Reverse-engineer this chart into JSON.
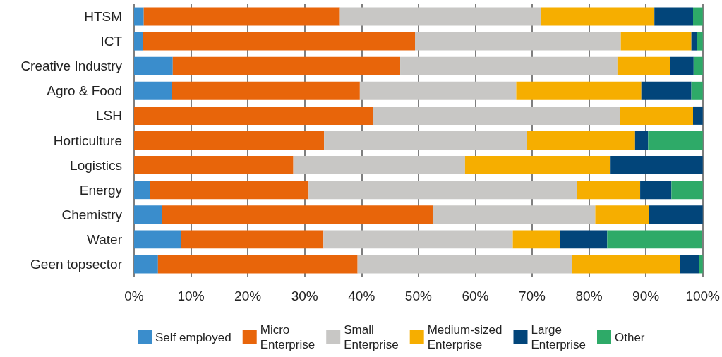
{
  "chart_data": {
    "type": "bar",
    "orientation": "horizontal",
    "stacked": true,
    "categories": [
      "HTSM",
      "ICT",
      "Creative Industry",
      "Agro & Food",
      "LSH",
      "Horticulture",
      "Logistics",
      "Energy",
      "Chemistry",
      "Water",
      "Geen topsector"
    ],
    "series": [
      {
        "name": "Self employed",
        "color": "#3a8dcc",
        "values": [
          1.7,
          1.6,
          6.8,
          6.7,
          0,
          0,
          0,
          2.8,
          4.9,
          8.3,
          4.2
        ]
      },
      {
        "name": "Micro Enterprise",
        "color": "#e8650a",
        "values": [
          34.5,
          47.8,
          40.0,
          33.0,
          42.0,
          33.4,
          28.0,
          27.9,
          47.6,
          25.0,
          35.1
        ]
      },
      {
        "name": "Small Enterprise",
        "color": "#c8c7c5",
        "values": [
          35.4,
          36.2,
          38.2,
          27.5,
          43.4,
          35.7,
          30.2,
          47.2,
          28.6,
          33.3,
          37.7
        ]
      },
      {
        "name": "Medium-sized Enterprise",
        "color": "#f6ae00",
        "values": [
          19.9,
          12.4,
          9.3,
          22.0,
          12.9,
          19.0,
          25.6,
          11.1,
          9.5,
          8.3,
          19.0
        ]
      },
      {
        "name": "Large Enterprise",
        "color": "#02457a",
        "values": [
          6.8,
          1.0,
          4.1,
          8.8,
          1.7,
          2.3,
          16.2,
          5.5,
          9.4,
          8.3,
          3.3
        ]
      },
      {
        "name": "Other",
        "color": "#2eaa68",
        "values": [
          1.7,
          1.0,
          1.6,
          2.0,
          0,
          9.6,
          0,
          5.5,
          0,
          16.7,
          0.7
        ]
      }
    ],
    "xlim": [
      0,
      100
    ],
    "xticks": [
      {
        "value": 0,
        "label": "0%"
      },
      {
        "value": 10,
        "label": "10%"
      },
      {
        "value": 20,
        "label": "20%"
      },
      {
        "value": 30,
        "label": "30%"
      },
      {
        "value": 40,
        "label": "40%"
      },
      {
        "value": 50,
        "label": "50%"
      },
      {
        "value": 60,
        "label": "60%"
      },
      {
        "value": 70,
        "label": "70%"
      },
      {
        "value": 80,
        "label": "80%"
      },
      {
        "value": 90,
        "label": "90%"
      },
      {
        "value": 100,
        "label": "100%"
      }
    ],
    "grid": "x",
    "legend": "bottom"
  }
}
